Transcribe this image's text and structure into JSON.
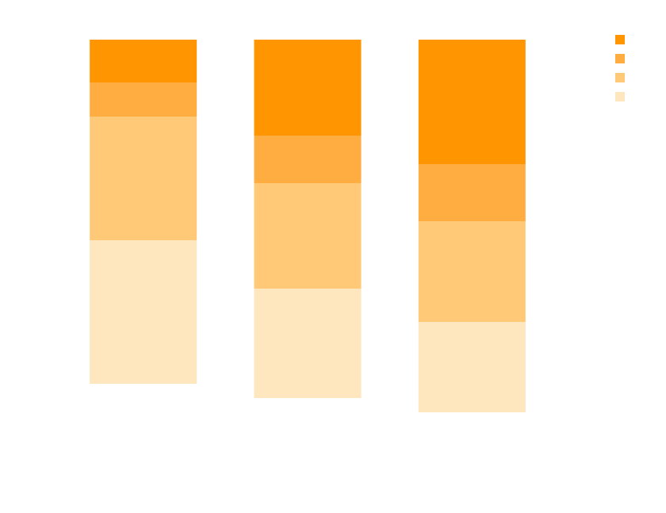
{
  "chart_data": {
    "type": "stacked-bar",
    "categories": [
      null,
      null,
      null
    ],
    "series": [
      {
        "color": "#ff9500",
        "values": [
          54,
          121,
          157
        ]
      },
      {
        "color": "#ffad40",
        "values": [
          43,
          60,
          72
        ]
      },
      {
        "color": "#ffc978",
        "values": [
          156,
          133,
          127
        ]
      },
      {
        "color": "#fee6bf",
        "values": [
          181,
          138,
          114
        ]
      }
    ],
    "ylim": [
      0,
      500
    ],
    "direction": "down",
    "legend": "top-right"
  }
}
